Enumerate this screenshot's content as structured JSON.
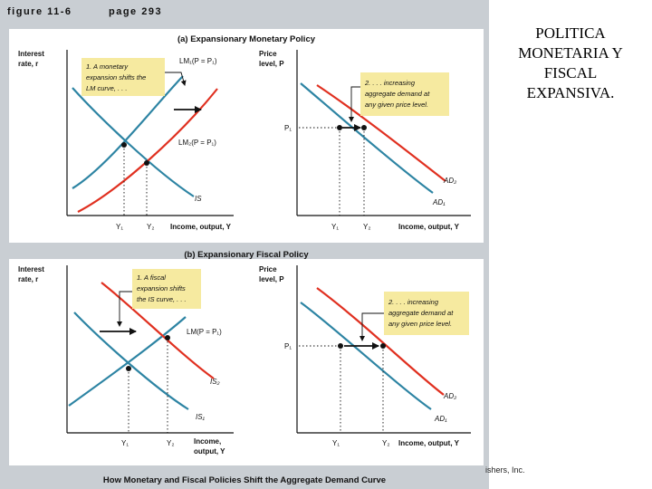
{
  "figure": {
    "label": "figure 11-6",
    "page": "page 293",
    "caption": "How Monetary and Fiscal Policies Shift the Aggregate Demand Curve",
    "publisher_fragment": "ishers, Inc.",
    "colors": {
      "page_gray": "#c9ced3",
      "panel_white": "#ffffff",
      "curve_blue": "#2d84a3",
      "curve_red": "#e03020",
      "note_yellow": "#f6eaa0"
    }
  },
  "side_title": {
    "lines": [
      "POLITICA",
      "MONETARIA Y",
      "FISCAL",
      "EXPANSIVA."
    ]
  },
  "panels": {
    "a": {
      "title": "(a) Expansionary Monetary Policy",
      "left": {
        "ylabel": [
          "Interest",
          "rate, r"
        ],
        "xlabel": "Income, output, Y",
        "note": [
          "1. A monetary",
          "expansion shifts the",
          "LM curve, . . ."
        ],
        "curves": {
          "lm1": "LM₁(P = P₁)",
          "lm2": "LM₂(P = P₁)",
          "is": "IS"
        },
        "x_ticks": [
          "Y₁",
          "Y₂"
        ]
      },
      "right": {
        "ylabel": [
          "Price",
          "level, P"
        ],
        "xlabel": "Income, output, Y",
        "note": [
          "2. . . . increasing",
          "aggregate demand at",
          "any given price level."
        ],
        "curves": {
          "ad1": "AD₁",
          "ad2": "AD₂"
        },
        "y_tick": "P₁",
        "x_ticks": [
          "Y₁",
          "Y₂"
        ]
      }
    },
    "b": {
      "title": "(b) Expansionary Fiscal Policy",
      "left": {
        "ylabel": [
          "Interest",
          "rate, r"
        ],
        "xlabel": [
          "Income,",
          "output, Y"
        ],
        "note": [
          "1. A fiscal",
          "expansion shifts",
          "the IS curve, . . ."
        ],
        "curves": {
          "lm": "LM(P = P₁)",
          "is1": "IS₁",
          "is2": "IS₂"
        },
        "x_ticks": [
          "Y₁",
          "Y₂"
        ]
      },
      "right": {
        "ylabel": [
          "Price",
          "level, P"
        ],
        "xlabel": "Income, output, Y",
        "note": [
          "2. . . . increasing",
          "aggregate demand at",
          "any given price level."
        ],
        "curves": {
          "ad1": "AD₁",
          "ad2": "AD₂"
        },
        "y_tick": "P₁",
        "x_ticks": [
          "Y₁",
          "Y₂"
        ]
      }
    }
  }
}
